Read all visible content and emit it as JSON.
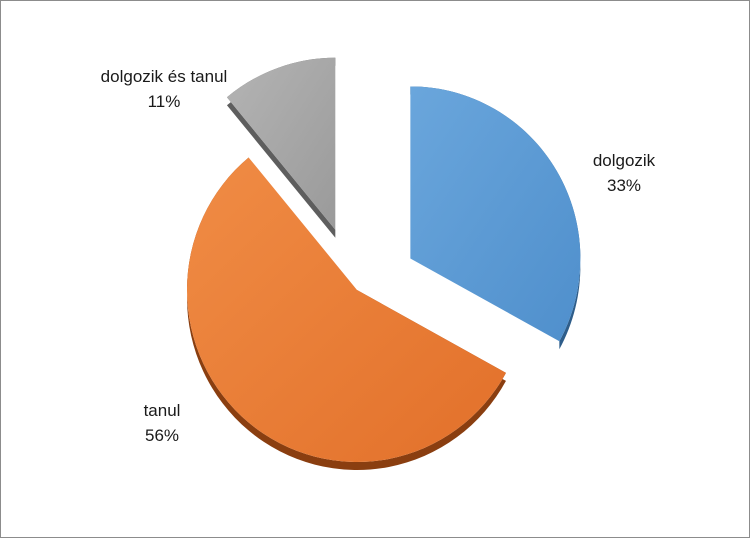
{
  "chart_data": {
    "type": "pie",
    "title": "",
    "exploded": true,
    "style": "3d-tilted",
    "legend": "none",
    "slices": [
      {
        "label": "dolgozik",
        "value": 33,
        "value_label": "33%",
        "color": "#5b9bd5",
        "side_color": "#2e5d8a"
      },
      {
        "label": "tanul",
        "value": 56,
        "value_label": "56%",
        "color": "#ed7d31",
        "side_color": "#8a3e10"
      },
      {
        "label": "dolgozik és tanul",
        "value": 11,
        "value_label": "11%",
        "color": "#a5a5a5",
        "side_color": "#5e5e5e"
      }
    ]
  }
}
